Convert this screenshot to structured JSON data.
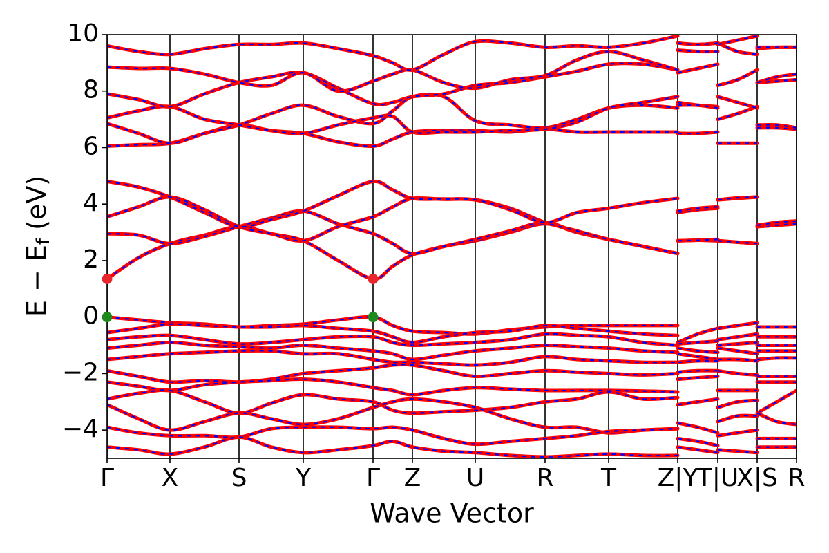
{
  "chart_data": {
    "type": "band",
    "xlabel": "Wave Vector",
    "ylabel": [
      "E − E",
      "f",
      " (eV)"
    ],
    "xlim": [
      0,
      9.98
    ],
    "ylim": [
      -5,
      10
    ],
    "xticks": [
      {
        "value": 0,
        "label": "Γ"
      },
      {
        "value": 0.91,
        "label": "X"
      },
      {
        "value": 1.91,
        "label": "S"
      },
      {
        "value": 2.84,
        "label": "Y"
      },
      {
        "value": 3.85,
        "label": "Γ"
      },
      {
        "value": 4.42,
        "label": "Z"
      },
      {
        "value": 5.33,
        "label": "U"
      },
      {
        "value": 6.34,
        "label": "R"
      },
      {
        "value": 7.26,
        "label": "T"
      },
      {
        "value": 8.26,
        "label": "Z|Y"
      },
      {
        "value": 8.84,
        "label": "T|U"
      },
      {
        "value": 9.41,
        "label": "X|S"
      },
      {
        "value": 9.98,
        "label": "R"
      }
    ],
    "yticks": [
      {
        "value": -4,
        "label": "−4"
      },
      {
        "value": -2,
        "label": "−2"
      },
      0,
      2,
      4,
      6,
      8,
      10
    ],
    "color": "#ff0000",
    "overlay_color": "#0000ff",
    "x": [
      0,
      0.455,
      0.91,
      1.41,
      1.91,
      2.375,
      2.84,
      3.345,
      3.85,
      4.135,
      4.42,
      4.875,
      5.33,
      5.835,
      6.34,
      6.8,
      7.26,
      7.76,
      8.26,
      8.26,
      8.26,
      8.55,
      8.84,
      8.84,
      8.84,
      9.125,
      9.41,
      9.41,
      9.41,
      9.695,
      9.98
    ],
    "series": [
      {
        "values": [
          1.35,
          2.1,
          2.6,
          2.9,
          3.2,
          2.95,
          2.7,
          2.0,
          1.35,
          1.8,
          2.2,
          2.5,
          2.7,
          3.0,
          3.3,
          3.0,
          2.75,
          2.5,
          2.25,
          null,
          2.7,
          2.72,
          2.7,
          null,
          2.7,
          2.65,
          2.6,
          null,
          3.2,
          3.25,
          3.3
        ]
      },
      {
        "values": [
          2.95,
          2.9,
          2.6,
          2.85,
          3.2,
          3.5,
          3.75,
          3.3,
          2.95,
          2.6,
          2.25,
          2.5,
          2.75,
          3.05,
          3.35,
          3.0,
          2.75,
          2.5,
          2.25,
          null,
          2.7,
          2.72,
          2.75,
          null,
          2.7,
          2.65,
          2.6,
          null,
          3.2,
          3.25,
          3.3
        ]
      },
      {
        "values": [
          3.55,
          3.9,
          4.25,
          3.8,
          3.2,
          2.95,
          2.7,
          3.2,
          3.55,
          3.9,
          4.2,
          4.17,
          4.15,
          3.85,
          3.35,
          3.05,
          2.75,
          2.5,
          2.25,
          null,
          3.7,
          3.8,
          3.85,
          null,
          4.15,
          4.2,
          4.25,
          null,
          3.2,
          3.35,
          3.4
        ]
      },
      {
        "values": [
          4.8,
          4.6,
          4.25,
          3.7,
          3.2,
          3.45,
          3.75,
          4.3,
          4.8,
          4.5,
          4.2,
          4.18,
          4.15,
          3.8,
          3.35,
          3.7,
          3.85,
          4.05,
          4.2,
          null,
          3.75,
          3.85,
          3.9,
          null,
          4.15,
          4.22,
          4.25,
          null,
          3.25,
          3.35,
          3.4
        ]
      },
      {
        "values": [
          6.05,
          6.1,
          6.15,
          6.5,
          6.8,
          6.6,
          6.5,
          6.2,
          6.05,
          6.3,
          6.55,
          6.6,
          6.6,
          6.55,
          6.65,
          6.55,
          6.55,
          6.55,
          6.55,
          null,
          6.5,
          6.5,
          6.55,
          null,
          6.15,
          6.15,
          6.15,
          null,
          6.7,
          6.7,
          6.65
        ]
      },
      {
        "values": [
          6.85,
          6.5,
          6.15,
          6.5,
          6.8,
          7.2,
          7.5,
          7.1,
          6.85,
          7.3,
          7.8,
          7.8,
          6.95,
          6.8,
          6.7,
          7.0,
          7.4,
          7.5,
          7.4,
          null,
          7.6,
          7.5,
          7.45,
          null,
          7.0,
          7.2,
          7.45,
          null,
          6.8,
          6.8,
          6.7
        ]
      },
      {
        "values": [
          7.05,
          7.3,
          7.45,
          7.0,
          6.8,
          6.6,
          6.5,
          6.8,
          7.05,
          7.1,
          6.55,
          6.55,
          6.55,
          6.6,
          6.65,
          6.9,
          7.4,
          7.6,
          7.8,
          null,
          7.5,
          7.5,
          7.4,
          null,
          7.8,
          7.6,
          7.4,
          null,
          8.3,
          8.35,
          8.4
        ]
      },
      {
        "values": [
          7.9,
          7.7,
          7.45,
          7.9,
          8.3,
          8.5,
          8.65,
          8.1,
          7.55,
          7.6,
          7.8,
          7.9,
          8.2,
          8.3,
          8.5,
          8.7,
          8.95,
          8.95,
          8.75,
          null,
          8.65,
          8.8,
          8.95,
          null,
          8.2,
          8.4,
          8.75,
          null,
          8.3,
          8.5,
          8.6
        ]
      },
      {
        "values": [
          8.85,
          8.8,
          8.8,
          8.6,
          8.3,
          8.2,
          8.65,
          8.0,
          8.35,
          8.6,
          8.75,
          8.3,
          8.1,
          8.4,
          8.55,
          9.1,
          9.4,
          9.1,
          8.75,
          null,
          9.45,
          9.4,
          9.4,
          null,
          9.7,
          9.4,
          9.3,
          null,
          9.5,
          9.55,
          9.55
        ]
      },
      {
        "values": [
          9.6,
          9.4,
          9.3,
          9.5,
          9.65,
          9.65,
          9.7,
          9.5,
          9.25,
          9.0,
          8.75,
          9.3,
          9.75,
          9.7,
          9.55,
          9.6,
          9.55,
          9.7,
          9.95,
          null,
          9.7,
          9.65,
          9.7,
          null,
          9.65,
          9.8,
          9.95,
          null,
          9.55,
          9.55,
          9.55
        ]
      },
      {
        "values": [
          0,
          -0.1,
          -0.2,
          -0.25,
          -0.35,
          -0.3,
          -0.25,
          -0.1,
          0,
          -0.3,
          -0.5,
          -0.55,
          -0.6,
          -0.45,
          -0.35,
          -0.3,
          -0.3,
          -0.3,
          -0.3,
          null,
          -0.9,
          -0.6,
          -0.4,
          null,
          -0.4,
          -0.3,
          -0.2,
          null,
          -0.35,
          -0.35,
          -0.35
        ]
      },
      {
        "values": [
          -0.55,
          -0.4,
          -0.25,
          -0.3,
          -0.35,
          -0.35,
          -0.3,
          -0.4,
          -0.5,
          -0.7,
          -0.9,
          -0.7,
          -0.55,
          -0.5,
          -0.3,
          -0.4,
          -0.5,
          -0.6,
          -0.65,
          null,
          -0.95,
          -0.9,
          -0.85,
          null,
          -0.8,
          -0.7,
          -0.6,
          null,
          -0.7,
          -0.7,
          -0.7
        ]
      },
      {
        "values": [
          -0.8,
          -0.7,
          -0.65,
          -0.8,
          -0.95,
          -0.9,
          -0.8,
          -0.7,
          -0.7,
          -0.9,
          -1.0,
          -0.95,
          -0.9,
          -0.8,
          -0.6,
          -0.65,
          -0.7,
          -0.9,
          -1.0,
          null,
          -1.1,
          -1.2,
          -1.25,
          null,
          -1.0,
          -0.95,
          -0.9,
          null,
          -1.0,
          -1.0,
          -1.0
        ]
      },
      {
        "values": [
          -1.1,
          -1.0,
          -0.9,
          -1.0,
          -1.05,
          -1.1,
          -1.0,
          -1.1,
          -1.2,
          -1.3,
          -1.5,
          -1.35,
          -1.2,
          -1.1,
          -1.0,
          -1.05,
          -1.1,
          -1.2,
          -1.25,
          null,
          -1.3,
          -1.4,
          -1.5,
          null,
          -1.1,
          -1.2,
          -1.3,
          null,
          -1.2,
          -1.2,
          -1.2
        ]
      },
      {
        "values": [
          -1.5,
          -1.4,
          -1.3,
          -1.25,
          -1.2,
          -1.2,
          -1.3,
          -1.3,
          -1.5,
          -1.6,
          -1.6,
          -1.65,
          -1.7,
          -1.6,
          -1.4,
          -1.5,
          -1.55,
          -1.6,
          -1.6,
          null,
          -1.6,
          -1.55,
          -1.55,
          null,
          -1.5,
          -1.5,
          -1.55,
          null,
          -1.5,
          -1.45,
          -1.45
        ]
      },
      {
        "values": [
          -1.9,
          -2.1,
          -2.3,
          -2.25,
          -2.3,
          -2.2,
          -2.0,
          -1.9,
          -1.8,
          -1.7,
          -1.7,
          -1.9,
          -2.1,
          -2.0,
          -1.9,
          -1.95,
          -2.0,
          -2.05,
          -2.0,
          null,
          -1.95,
          -1.9,
          -1.9,
          null,
          -1.9,
          -2.0,
          -2.05,
          null,
          -2.1,
          -2.1,
          -2.1
        ]
      },
      {
        "values": [
          -2.3,
          -2.45,
          -2.6,
          -2.4,
          -2.3,
          -2.25,
          -2.2,
          -2.3,
          -2.5,
          -2.6,
          -2.75,
          -2.6,
          -2.5,
          -2.55,
          -2.6,
          -2.6,
          -2.6,
          -2.62,
          -2.65,
          null,
          -2.2,
          -2.15,
          -2.1,
          null,
          -2.6,
          -2.6,
          -2.6,
          null,
          -2.3,
          -2.3,
          -2.3
        ]
      },
      {
        "values": [
          -2.9,
          -2.7,
          -2.6,
          -3.0,
          -3.4,
          -3.05,
          -2.75,
          -2.9,
          -3.0,
          -3.3,
          -3.4,
          -3.35,
          -3.3,
          -3.2,
          -3.0,
          -2.9,
          -2.65,
          -2.9,
          -2.85,
          null,
          -3.1,
          -3.0,
          -2.9,
          null,
          -3.2,
          -3.0,
          -2.95,
          null,
          -3.4,
          -3.0,
          -2.6
        ]
      },
      {
        "values": [
          -3.1,
          -3.6,
          -4.0,
          -3.7,
          -3.4,
          -3.6,
          -3.8,
          -3.6,
          -3.2,
          -3.0,
          -2.9,
          -3.0,
          -3.2,
          -3.6,
          -3.9,
          -3.9,
          -4.1,
          -4.0,
          -3.95,
          null,
          -3.75,
          -3.9,
          -4.1,
          null,
          -3.7,
          -3.5,
          -3.5,
          null,
          -3.4,
          -3.7,
          -3.8
        ]
      },
      {
        "values": [
          -3.9,
          -4.1,
          -4.2,
          -4.2,
          -4.25,
          -3.95,
          -3.9,
          -3.9,
          -3.95,
          -3.9,
          -4.0,
          -4.3,
          -4.5,
          -4.4,
          -4.3,
          -4.2,
          -4.05,
          -4.0,
          -3.95,
          null,
          -4.3,
          -4.4,
          -4.55,
          null,
          -4.2,
          -4.1,
          -4.0,
          null,
          -4.3,
          -4.3,
          -4.3
        ]
      },
      {
        "values": [
          -4.6,
          -4.7,
          -4.85,
          -4.6,
          -4.25,
          -4.6,
          -4.8,
          -4.7,
          -4.55,
          -4.4,
          -4.6,
          -4.75,
          -4.8,
          -4.9,
          -4.95,
          -4.9,
          -4.85,
          -4.9,
          -4.9,
          null,
          -4.6,
          -4.7,
          -4.8,
          null,
          -4.7,
          -4.75,
          -4.8,
          null,
          -4.6,
          -4.6,
          -4.6
        ]
      }
    ],
    "highlights": [
      {
        "x": 0,
        "y": 1.35,
        "color": "#e8262b"
      },
      {
        "x": 3.85,
        "y": 1.35,
        "color": "#e8262b"
      },
      {
        "x": 0,
        "y": 0,
        "color": "#1e8a1e"
      },
      {
        "x": 3.85,
        "y": 0,
        "color": "#1e8a1e"
      }
    ]
  }
}
